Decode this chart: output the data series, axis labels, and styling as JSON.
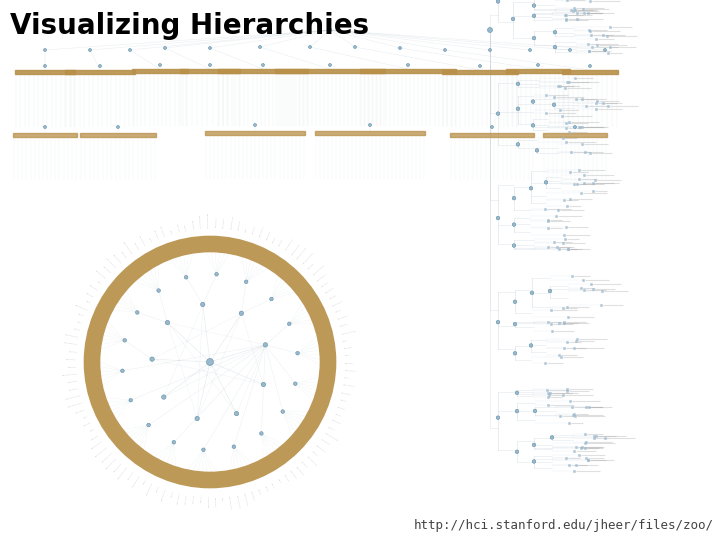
{
  "title": "Visualizing Hierarchies",
  "url": "http://hci.stanford.edu/jheer/files/zoo/",
  "bg_color": "#ffffff",
  "title_fontsize": 20,
  "url_fontsize": 9,
  "title_color": "#000000",
  "url_color": "#444444",
  "line_color": "#b8c8d0",
  "node_color": "#9ab8cc",
  "node_edge_color": "#6090a8",
  "bar_color": "#b8904a",
  "bar_color2": "#a07838"
}
